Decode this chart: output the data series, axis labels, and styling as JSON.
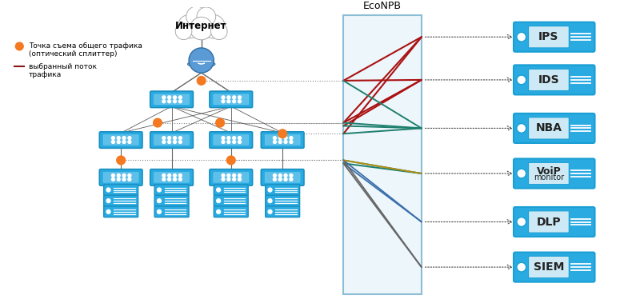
{
  "bg_color": "#ffffff",
  "legend_dot_color": "#f47920",
  "legend_line_color": "#8b1515",
  "legend_text1": "Точка съема общего трафика",
  "legend_text2": "(оптический сплиттер)",
  "legend_text3": "выбранный поток",
  "legend_text4": "трафика",
  "internet_label": "Интернет",
  "econpb_label": "EcoNPB",
  "device_labels": [
    "IPS",
    "IDS",
    "NBA",
    "VoiP\nmonitor",
    "DLP",
    "SIEM"
  ],
  "orange_dot": "#f47920",
  "switch_color": "#29abe2",
  "switch_border": "#1a8fc0",
  "server_color": "#29abe2",
  "server_border": "#1a8fc0",
  "device_bg": "#29abe2",
  "device_inner": "#c8ecf8",
  "econpb_fill": "#eaf5fb",
  "econpb_border": "#7ab3d0",
  "cloud_fill": "#ffffff",
  "cloud_border": "#aaaaaa",
  "router_color": "#5b9bd5",
  "router_border": "#2e6da4",
  "line_gray": "#666666",
  "dot_line": "#888888"
}
